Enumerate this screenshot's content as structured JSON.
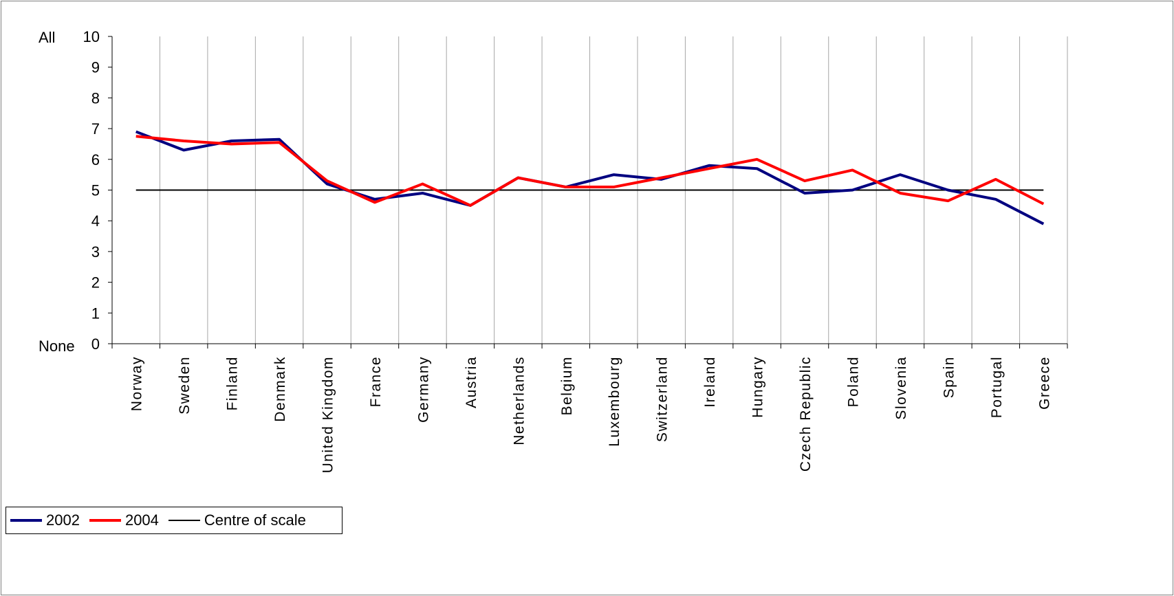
{
  "chart_data": {
    "type": "line",
    "categories": [
      "Norway",
      "Sweden",
      "Finland",
      "Denmark",
      "United Kingdom",
      "France",
      "Germany",
      "Austria",
      "Netherlands",
      "Belgium",
      "Luxembourg",
      "Switzerland",
      "Ireland",
      "Hungary",
      "Czech Republic",
      "Poland",
      "Slovenia",
      "Spain",
      "Portugal",
      "Greece"
    ],
    "series": [
      {
        "name": "2002",
        "color": "#000080",
        "values": [
          6.9,
          6.3,
          6.6,
          6.65,
          5.2,
          4.7,
          4.9,
          4.5,
          5.4,
          5.1,
          5.5,
          5.35,
          5.8,
          5.7,
          4.9,
          5.0,
          5.5,
          5.0,
          4.7,
          3.9
        ]
      },
      {
        "name": "2004",
        "color": "#ff0000",
        "values": [
          6.75,
          6.6,
          6.5,
          6.55,
          5.3,
          4.6,
          5.2,
          4.5,
          5.4,
          5.1,
          5.1,
          5.4,
          5.7,
          6.0,
          5.3,
          5.65,
          4.9,
          4.65,
          5.35,
          4.55
        ]
      }
    ],
    "reference_line": {
      "name": "Centre of scale",
      "value": 5,
      "color": "#000000"
    },
    "ylim": [
      0,
      10
    ],
    "yticks": [
      "0",
      "1",
      "2",
      "3",
      "4",
      "5",
      "6",
      "7",
      "8",
      "9",
      "10"
    ],
    "y_top_label": "All",
    "y_bottom_label": "None",
    "grid": "vertical",
    "legend_position": "bottom-left"
  }
}
